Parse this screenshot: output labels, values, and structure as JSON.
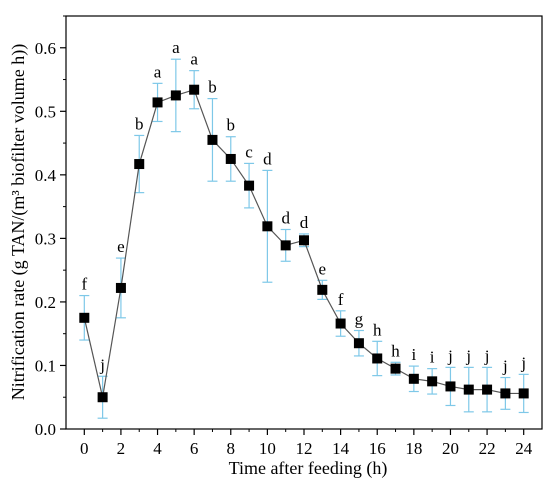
{
  "chart_data": {
    "type": "scatter",
    "xlabel": "Time after feeding (h)",
    "ylabel": "Nitrification rate (g TAN/(m³ biofilter volume h))",
    "xlim": [
      -1,
      25
    ],
    "ylim": [
      0,
      0.65
    ],
    "xticks": [
      0,
      2,
      4,
      6,
      8,
      10,
      12,
      14,
      16,
      18,
      20,
      22,
      24
    ],
    "yticks": [
      0.0,
      0.1,
      0.2,
      0.3,
      0.4,
      0.5,
      0.6
    ],
    "grid": false,
    "legend": "none",
    "colors": {
      "line": "#555555",
      "marker": "#000000",
      "errorbar": "#7ec8e8"
    },
    "series": [
      {
        "x": [
          0,
          1,
          2,
          3,
          4,
          5,
          6,
          7,
          8,
          9,
          10,
          11,
          12,
          13,
          14,
          15,
          16,
          17,
          18,
          19,
          20,
          21,
          22,
          23,
          24
        ],
        "y": [
          0.175,
          0.05,
          0.222,
          0.417,
          0.514,
          0.525,
          0.534,
          0.455,
          0.425,
          0.383,
          0.319,
          0.289,
          0.297,
          0.219,
          0.166,
          0.135,
          0.111,
          0.095,
          0.079,
          0.075,
          0.067,
          0.062,
          0.062,
          0.056,
          0.056
        ],
        "error": [
          0.035,
          0.033,
          0.047,
          0.045,
          0.03,
          0.057,
          0.03,
          0.065,
          0.035,
          0.035,
          0.088,
          0.025,
          0.01,
          0.015,
          0.02,
          0.02,
          0.027,
          0.01,
          0.02,
          0.02,
          0.03,
          0.035,
          0.035,
          0.025,
          0.03
        ],
        "letters": [
          "f",
          "j",
          "e",
          "b",
          "a",
          "a",
          "a",
          "b",
          "b",
          "c",
          "d",
          "d",
          "d",
          "e",
          "f",
          "g",
          "h",
          "h",
          "i",
          "i",
          "j",
          "j",
          "j",
          "j",
          "j"
        ]
      }
    ]
  }
}
